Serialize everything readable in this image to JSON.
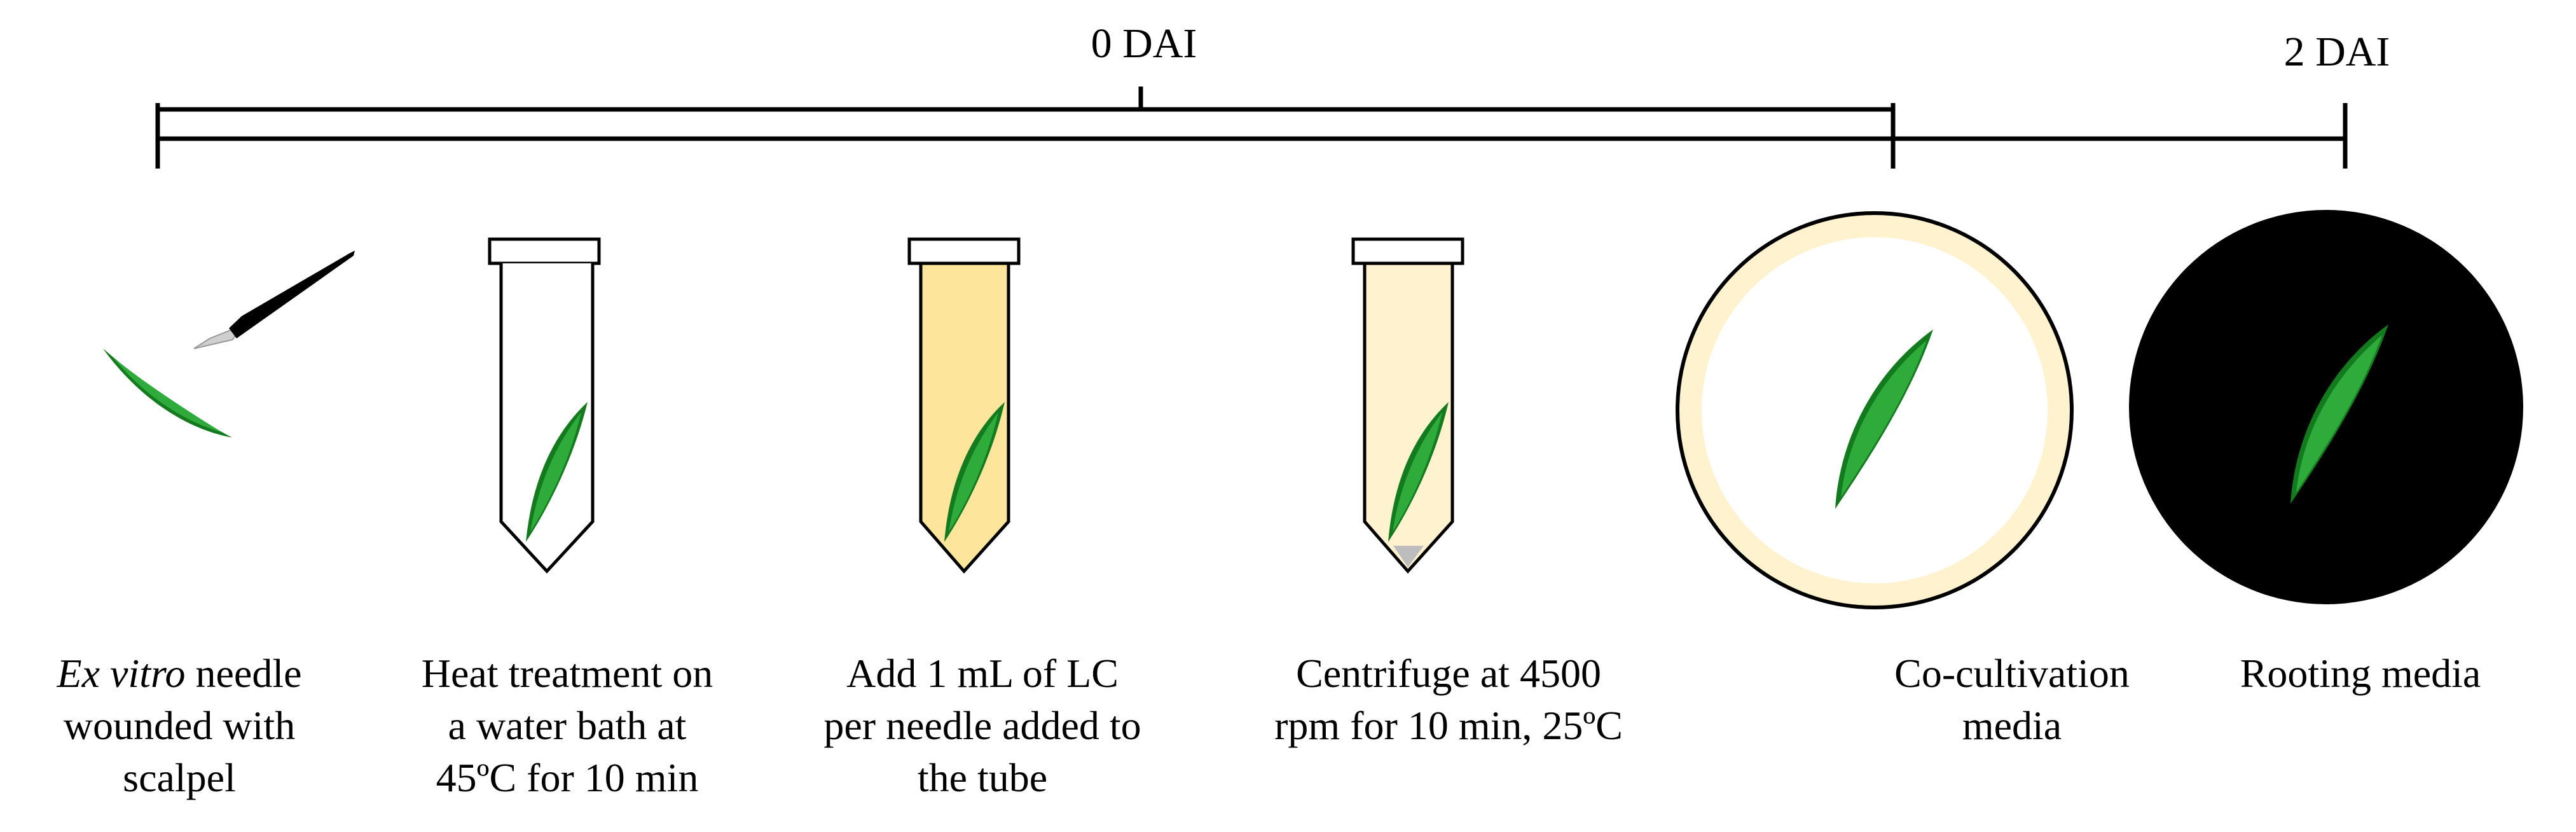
{
  "timeline": {
    "marker_0": "0 DAI",
    "marker_2": "2 DAI"
  },
  "steps": [
    {
      "lines": [
        [
          {
            "text": "Ex vitro",
            "italic": true
          },
          {
            "text": " needle",
            "italic": false
          }
        ],
        [
          {
            "text": "wounded with",
            "italic": false
          }
        ],
        [
          {
            "text": "scalpel",
            "italic": false
          }
        ]
      ]
    },
    {
      "lines": [
        [
          {
            "text": "Heat treatment on",
            "italic": false
          }
        ],
        [
          {
            "text": "a water bath at",
            "italic": false
          }
        ],
        [
          {
            "text": "45ºC for 10 min",
            "italic": false
          }
        ]
      ]
    },
    {
      "lines": [
        [
          {
            "text": "Add 1 mL of LC",
            "italic": false
          }
        ],
        [
          {
            "text": "per needle added to",
            "italic": false
          }
        ],
        [
          {
            "text": "the tube",
            "italic": false
          }
        ]
      ]
    },
    {
      "lines": [
        [
          {
            "text": "Centrifuge at 4500",
            "italic": false
          }
        ],
        [
          {
            "text": "rpm for 10 min, 25ºC",
            "italic": false
          }
        ]
      ]
    },
    {
      "lines": [
        [
          {
            "text": "Co-cultivation",
            "italic": false
          }
        ],
        [
          {
            "text": "media",
            "italic": false
          }
        ]
      ]
    },
    {
      "lines": [
        [
          {
            "text": "Rooting media",
            "italic": false
          }
        ]
      ]
    }
  ],
  "colors": {
    "needle_dark": "#137a1e",
    "needle_light": "#2eab3a",
    "tube_lc": "#fde59b",
    "tube_centrifuged": "#fff2cf",
    "pellet": "#bdbdbd",
    "cocultivation_rim": "#fff2cf",
    "rooting_media": "#000000"
  }
}
